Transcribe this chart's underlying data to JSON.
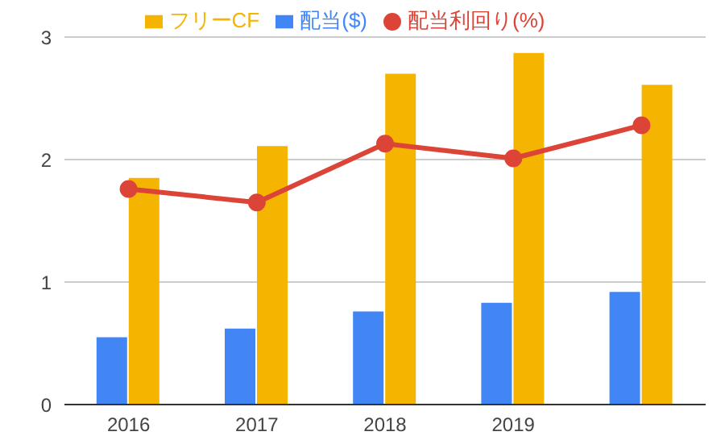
{
  "chart_data": {
    "type": "bar",
    "categories": [
      "2016",
      "2017",
      "2018",
      "2019",
      null
    ],
    "series": [
      {
        "name": "配当($)",
        "color": "#4285f4",
        "values": [
          0.55,
          0.62,
          0.76,
          0.83,
          0.92
        ]
      },
      {
        "name": "フリーCF",
        "color": "#f4b400",
        "values": [
          1.85,
          2.11,
          2.7,
          2.87,
          2.61
        ]
      },
      {
        "name": "配当利回り(%)",
        "type": "line",
        "color": "#db4437",
        "values": [
          1.76,
          1.65,
          2.13,
          2.01,
          2.28
        ]
      }
    ],
    "ylim": [
      0,
      3
    ],
    "yticks": [
      0,
      1,
      2,
      3
    ],
    "grid": "y",
    "legend": "top",
    "marker": "circle",
    "line_style": "solid"
  }
}
